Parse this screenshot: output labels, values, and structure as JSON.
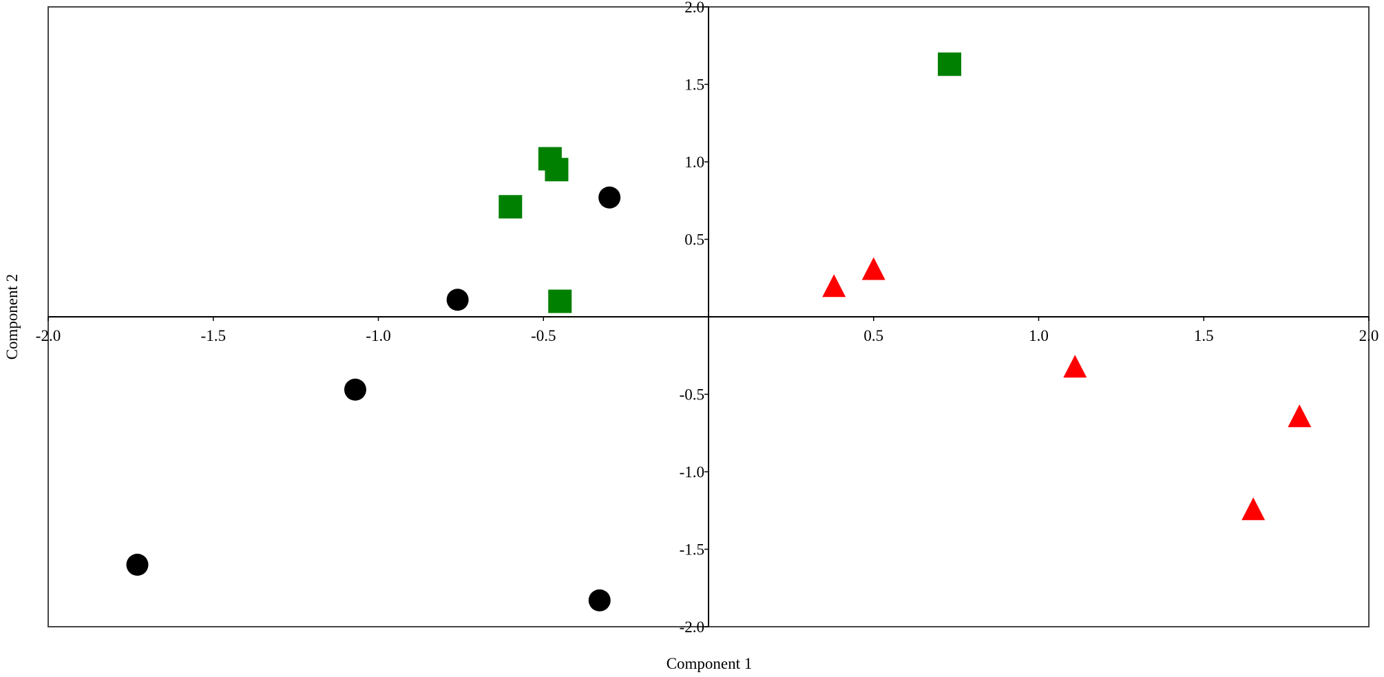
{
  "chart_data": {
    "type": "scatter",
    "title": "",
    "xlabel": "Component 1",
    "ylabel": "Component 2",
    "xlim": [
      -2.0,
      2.0
    ],
    "ylim": [
      -2.0,
      2.0
    ],
    "grid": false,
    "legend": "none",
    "x_ticks": [
      "-2.0",
      "-1.5",
      "-1.0",
      "-0.5",
      "0.5",
      "1.0",
      "1.5",
      "2.0"
    ],
    "x_tick_values": [
      -2.0,
      -1.5,
      -1.0,
      -0.5,
      0.5,
      1.0,
      1.5,
      2.0
    ],
    "y_ticks": [
      "2.0",
      "1.5",
      "1.0",
      "0.5",
      "-0.5",
      "-1.0",
      "-1.5",
      "-2.0"
    ],
    "y_tick_values": [
      2.0,
      1.5,
      1.0,
      0.5,
      -0.5,
      -1.0,
      -1.5,
      -2.0
    ],
    "series": [
      {
        "marker": "circle",
        "color": "#000000",
        "points": [
          [
            -1.73,
            -1.6
          ],
          [
            -1.07,
            -0.47
          ],
          [
            -0.76,
            0.11
          ],
          [
            -0.3,
            0.77
          ],
          [
            -0.33,
            -1.83
          ]
        ]
      },
      {
        "marker": "square",
        "color": "#008000",
        "points": [
          [
            -0.48,
            1.02
          ],
          [
            -0.46,
            0.95
          ],
          [
            -0.6,
            0.71
          ],
          [
            -0.45,
            0.1
          ],
          [
            0.73,
            1.63
          ]
        ]
      },
      {
        "marker": "triangle",
        "color": "#ff0000",
        "points": [
          [
            0.38,
            0.19
          ],
          [
            0.5,
            0.3
          ],
          [
            1.11,
            -0.33
          ],
          [
            1.79,
            -0.65
          ],
          [
            1.65,
            -1.25
          ]
        ]
      }
    ]
  }
}
